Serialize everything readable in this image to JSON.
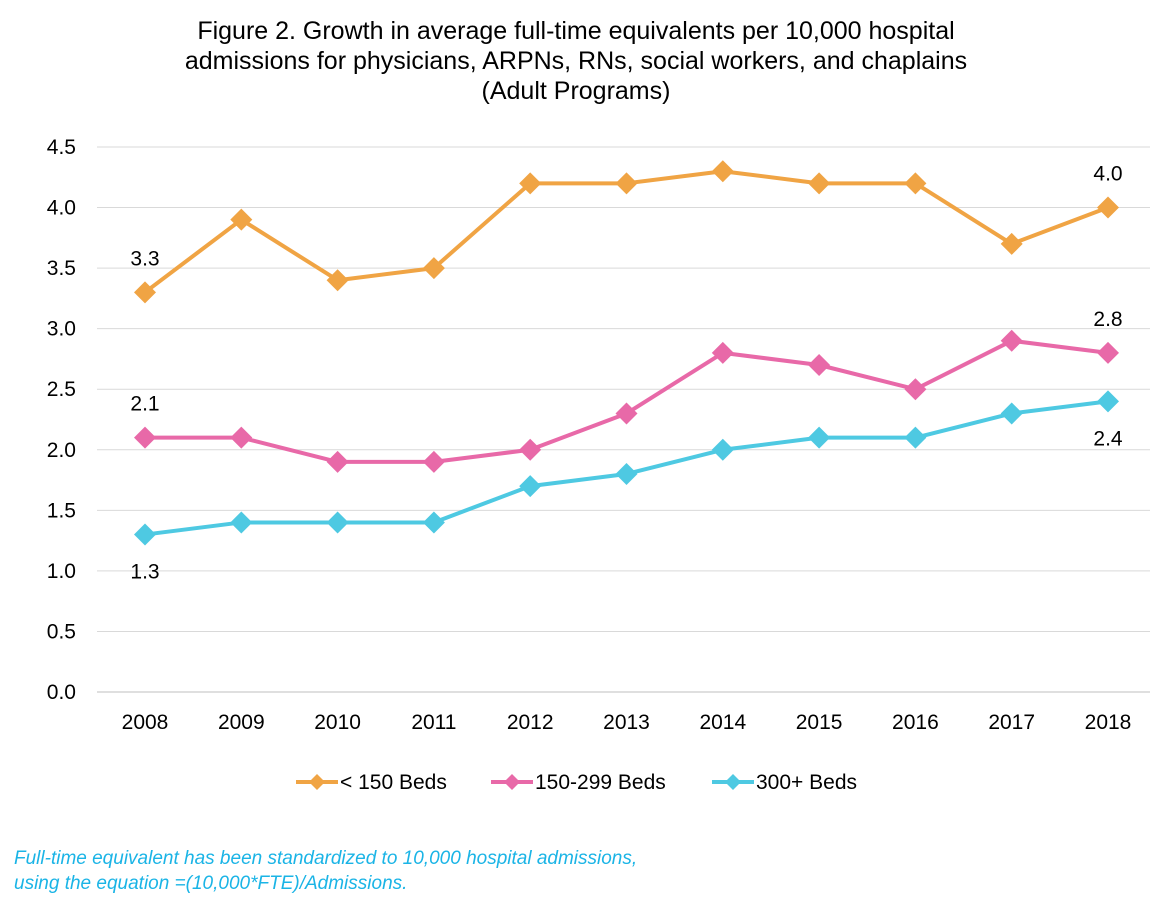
{
  "chart_data": {
    "type": "line",
    "title_lines": [
      "Figure 2. Growth in average full-time equivalents per 10,000 hospital",
      "admissions for physicians, ARPNs, RNs, social workers, and chaplains",
      "(Adult Programs)"
    ],
    "categories": [
      "2008",
      "2009",
      "2010",
      "2011",
      "2012",
      "2013",
      "2014",
      "2015",
      "2016",
      "2017",
      "2018"
    ],
    "ylim": [
      0,
      4.5
    ],
    "ytick_step": 0.5,
    "y_tick_labels": [
      "0.0",
      "0.5",
      "1.0",
      "1.5",
      "2.0",
      "2.5",
      "3.0",
      "3.5",
      "4.0",
      "4.5"
    ],
    "grid": "horizontal",
    "legend_position": "bottom",
    "series": [
      {
        "name": "< 150 Beds",
        "color": "#f0a444",
        "marker": "diamond",
        "values": [
          3.3,
          3.9,
          3.4,
          3.5,
          4.2,
          4.2,
          4.3,
          4.2,
          4.2,
          3.7,
          4.0
        ],
        "data_labels": [
          {
            "index": 0,
            "text": "3.3",
            "pos": "above"
          },
          {
            "index": 10,
            "text": "4.0",
            "pos": "above"
          }
        ]
      },
      {
        "name": "150-299 Beds",
        "color": "#e869a8",
        "marker": "diamond",
        "values": [
          2.1,
          2.1,
          1.9,
          1.9,
          2.0,
          2.3,
          2.8,
          2.7,
          2.5,
          2.9,
          2.8
        ],
        "data_labels": [
          {
            "index": 0,
            "text": "2.1",
            "pos": "above"
          },
          {
            "index": 10,
            "text": "2.8",
            "pos": "above"
          }
        ]
      },
      {
        "name": "300+ Beds",
        "color": "#4ec9e2",
        "marker": "diamond",
        "values": [
          1.3,
          1.4,
          1.4,
          1.4,
          1.7,
          1.8,
          2.0,
          2.1,
          2.1,
          2.3,
          2.4
        ],
        "data_labels": [
          {
            "index": 0,
            "text": "1.3",
            "pos": "below"
          },
          {
            "index": 10,
            "text": "2.4",
            "pos": "below"
          }
        ]
      }
    ]
  },
  "footnote_lines": [
    "Full-time equivalent has been standardized to 10,000 hospital admissions,",
    "using the equation =(10,000*FTE)/Admissions."
  ]
}
